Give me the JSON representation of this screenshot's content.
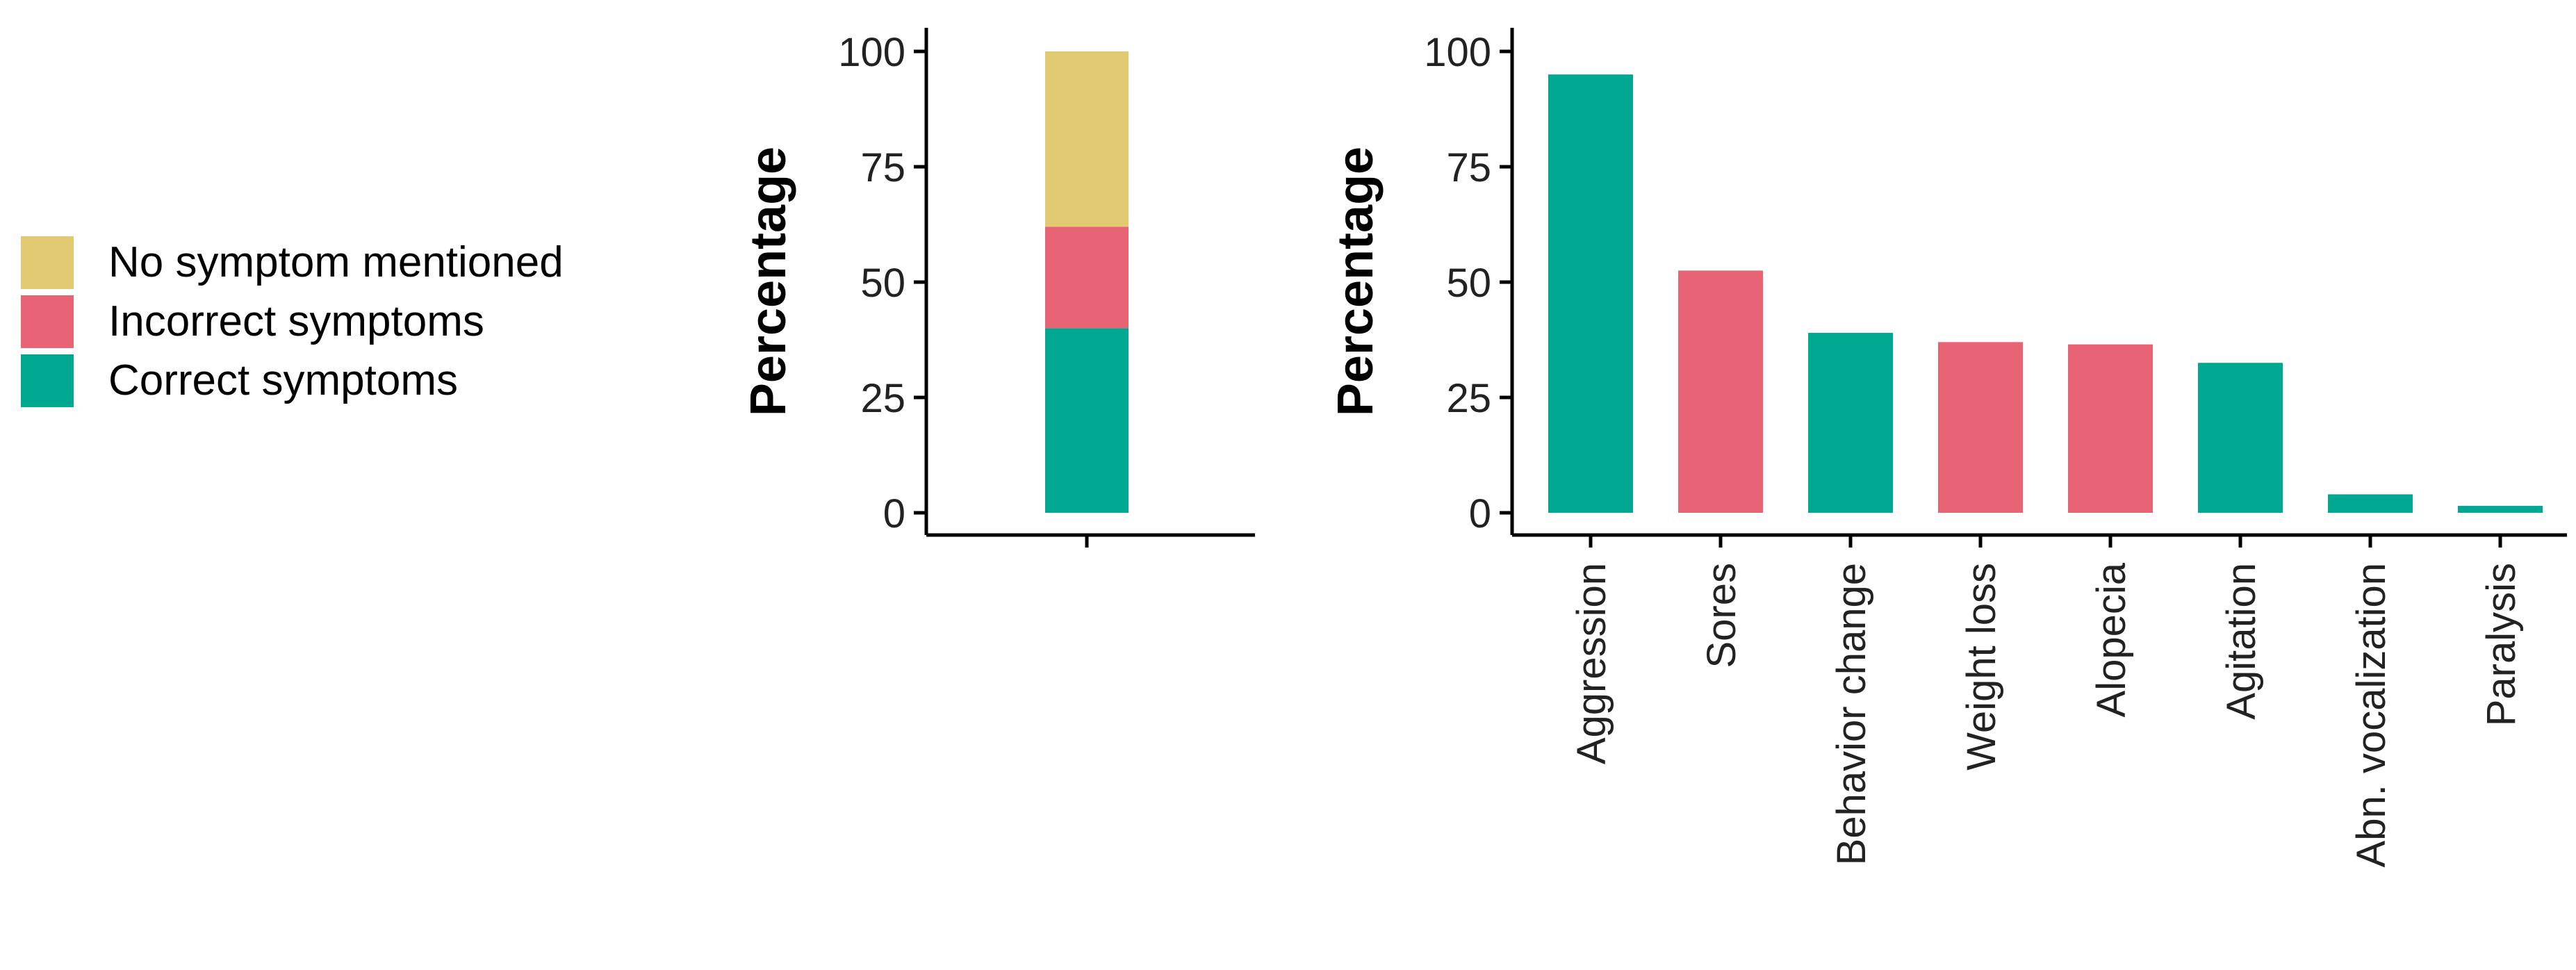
{
  "chart_data": [
    {
      "type": "bar",
      "stacked": true,
      "categories": [
        ""
      ],
      "series": [
        {
          "name": "Correct symptoms",
          "values": [
            40
          ],
          "color": "#00A891"
        },
        {
          "name": "Incorrect symptoms",
          "values": [
            22
          ],
          "color": "#E86374"
        },
        {
          "name": "No symptom mentioned",
          "values": [
            38
          ],
          "color": "#E2CA72"
        }
      ],
      "ylabel": "Percentage",
      "ylim": [
        0,
        100
      ],
      "yticks": [
        0,
        25,
        50,
        75,
        100
      ],
      "grid": false,
      "legend": {
        "placement": "left",
        "entries": [
          {
            "label": "No symptom mentioned",
            "color": "#E2CA72"
          },
          {
            "label": "Incorrect symptoms",
            "color": "#E86374"
          },
          {
            "label": "Correct symptoms",
            "color": "#00A891"
          }
        ]
      }
    },
    {
      "type": "bar",
      "categories": [
        "Aggression",
        "Sores",
        "Behavior change",
        "Weight loss",
        "Alopecia",
        "Agitation",
        "Abn. vocalization",
        "Paralysis"
      ],
      "values": [
        95,
        52.5,
        39,
        37,
        36.5,
        32.5,
        4,
        1.5
      ],
      "bar_kind": [
        "Correct symptoms",
        "Incorrect symptoms",
        "Correct symptoms",
        "Incorrect symptoms",
        "Incorrect symptoms",
        "Correct symptoms",
        "Correct symptoms",
        "Correct symptoms"
      ],
      "ylabel": "Percentage",
      "ylim": [
        0,
        100
      ],
      "yticks": [
        0,
        25,
        50,
        75,
        100
      ],
      "grid": false
    }
  ]
}
